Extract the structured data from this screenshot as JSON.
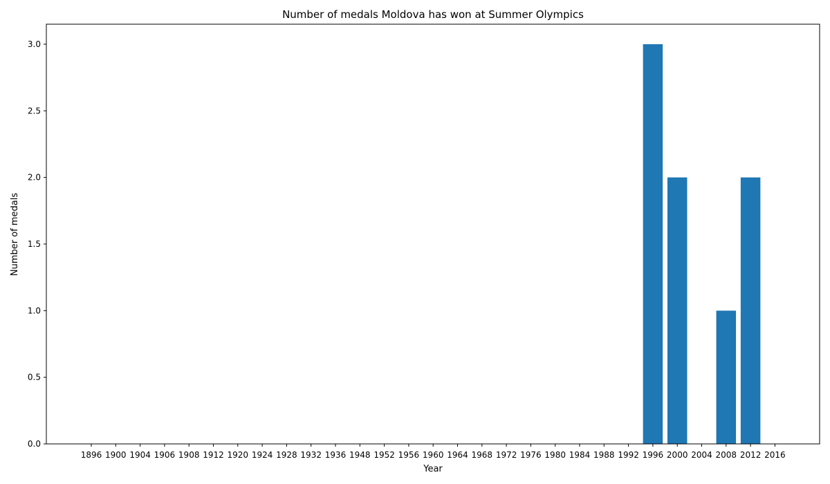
{
  "colors": {
    "bar": "#1f77b4",
    "axis": "#000000",
    "background": "#ffffff"
  },
  "chart_data": {
    "type": "bar",
    "title": "Number of medals Moldova has won at Summer Olympics",
    "xlabel": "Year",
    "ylabel": "Number of medals",
    "categories": [
      "1896",
      "1900",
      "1904",
      "1906",
      "1908",
      "1912",
      "1920",
      "1924",
      "1928",
      "1932",
      "1936",
      "1948",
      "1952",
      "1956",
      "1960",
      "1964",
      "1968",
      "1972",
      "1976",
      "1980",
      "1984",
      "1988",
      "1992",
      "1996",
      "2000",
      "2004",
      "2008",
      "2012",
      "2016"
    ],
    "values": [
      0,
      0,
      0,
      0,
      0,
      0,
      0,
      0,
      0,
      0,
      0,
      0,
      0,
      0,
      0,
      0,
      0,
      0,
      0,
      0,
      0,
      0,
      0,
      3,
      2,
      0,
      1,
      2,
      0
    ],
    "ylim": [
      0,
      3.15
    ],
    "yticks": [
      "0.0",
      "0.5",
      "1.0",
      "1.5",
      "2.0",
      "2.5",
      "3.0"
    ],
    "grid": false,
    "legend": "none"
  }
}
